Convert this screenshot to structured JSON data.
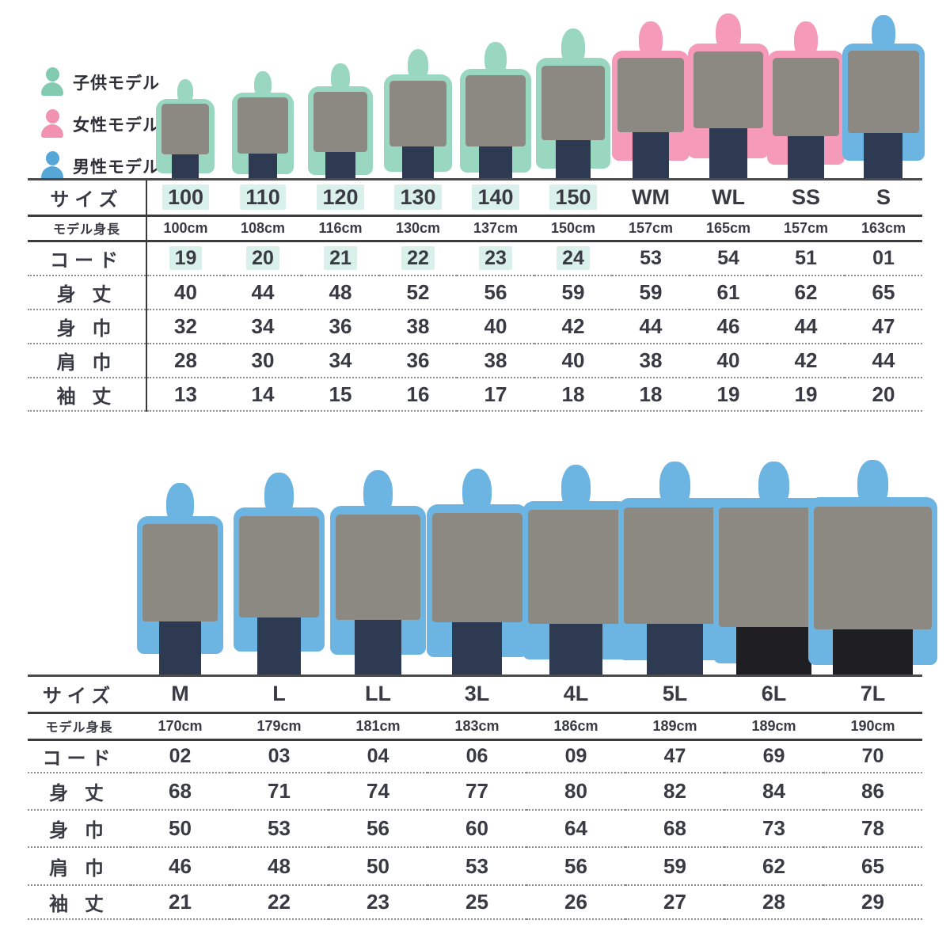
{
  "legend": {
    "items": [
      {
        "id": "kids",
        "label": "子供モデル",
        "color": "#82cbb1"
      },
      {
        "id": "women",
        "label": "女性モデル",
        "color": "#f193b0"
      },
      {
        "id": "men",
        "label": "男性モデル",
        "color": "#57a6d8"
      }
    ]
  },
  "row_labels": {
    "size": "サイズ",
    "model_height": "モデル身長",
    "code": "コード",
    "body_length": "身 丈",
    "body_width": "身 巾",
    "shoulder_width": "肩 巾",
    "sleeve_length": "袖 丈"
  },
  "palette": {
    "kids_text": "#3aa69e",
    "women_text": "#ec7ca6",
    "men_text": "#3691c6",
    "kids_highlight": "#d9f1ea",
    "number_text": "#3a3a44",
    "shirt": "#8c8882",
    "jeans": "#2d3a52",
    "shorts": "#1f1f23",
    "kids_model": "#9ad7c0",
    "women_model": "#f59ab9",
    "men_model": "#6cb4e2"
  },
  "size_chart_small": {
    "columns": [
      {
        "size": "100",
        "model_height": "100cm",
        "code": "19",
        "body_length": "40",
        "body_width": "32",
        "shoulder_width": "28",
        "sleeve_length": "13",
        "group": "kids",
        "model": "kids",
        "model_height_cm": 100,
        "legs": "jeans"
      },
      {
        "size": "110",
        "model_height": "108cm",
        "code": "20",
        "body_length": "44",
        "body_width": "34",
        "shoulder_width": "30",
        "sleeve_length": "14",
        "group": "kids",
        "model": "kids",
        "model_height_cm": 108,
        "legs": "jeans"
      },
      {
        "size": "120",
        "model_height": "116cm",
        "code": "21",
        "body_length": "48",
        "body_width": "36",
        "shoulder_width": "34",
        "sleeve_length": "15",
        "group": "kids",
        "model": "kids",
        "model_height_cm": 116,
        "legs": "jeans"
      },
      {
        "size": "130",
        "model_height": "130cm",
        "code": "22",
        "body_length": "52",
        "body_width": "38",
        "shoulder_width": "36",
        "sleeve_length": "16",
        "group": "kids",
        "model": "kids",
        "model_height_cm": 130,
        "legs": "jeans"
      },
      {
        "size": "140",
        "model_height": "137cm",
        "code": "23",
        "body_length": "56",
        "body_width": "40",
        "shoulder_width": "38",
        "sleeve_length": "17",
        "group": "kids",
        "model": "kids",
        "model_height_cm": 137,
        "legs": "jeans"
      },
      {
        "size": "150",
        "model_height": "150cm",
        "code": "24",
        "body_length": "59",
        "body_width": "42",
        "shoulder_width": "40",
        "sleeve_length": "18",
        "group": "kids",
        "model": "kids",
        "model_height_cm": 150,
        "legs": "jeans"
      },
      {
        "size": "WM",
        "model_height": "157cm",
        "code": "53",
        "body_length": "59",
        "body_width": "44",
        "shoulder_width": "38",
        "sleeve_length": "18",
        "group": "women",
        "model": "women",
        "model_height_cm": 157,
        "legs": "jeans"
      },
      {
        "size": "WL",
        "model_height": "165cm",
        "code": "54",
        "body_length": "61",
        "body_width": "46",
        "shoulder_width": "40",
        "sleeve_length": "19",
        "group": "women",
        "model": "women",
        "model_height_cm": 165,
        "legs": "jeans"
      },
      {
        "size": "SS",
        "model_height": "157cm",
        "code": "51",
        "body_length": "62",
        "body_width": "44",
        "shoulder_width": "42",
        "sleeve_length": "19",
        "group": "men",
        "model": "women",
        "model_height_cm": 157,
        "legs": "jeans"
      },
      {
        "size": "S",
        "model_height": "163cm",
        "code": "01",
        "body_length": "65",
        "body_width": "47",
        "shoulder_width": "44",
        "sleeve_length": "20",
        "group": "men",
        "model": "men",
        "model_height_cm": 163,
        "legs": "jeans"
      }
    ]
  },
  "size_chart_large": {
    "columns": [
      {
        "size": "M",
        "model_height": "170cm",
        "code": "02",
        "body_length": "68",
        "body_width": "50",
        "shoulder_width": "46",
        "sleeve_length": "21",
        "group": "men",
        "model": "men",
        "model_height_cm": 170,
        "legs": "jeans"
      },
      {
        "size": "L",
        "model_height": "179cm",
        "code": "03",
        "body_length": "71",
        "body_width": "53",
        "shoulder_width": "48",
        "sleeve_length": "22",
        "group": "men",
        "model": "men",
        "model_height_cm": 179,
        "legs": "jeans"
      },
      {
        "size": "LL",
        "model_height": "181cm",
        "code": "04",
        "body_length": "74",
        "body_width": "56",
        "shoulder_width": "50",
        "sleeve_length": "23",
        "group": "men",
        "model": "men",
        "model_height_cm": 181,
        "legs": "jeans"
      },
      {
        "size": "3L",
        "model_height": "183cm",
        "code": "06",
        "body_length": "77",
        "body_width": "60",
        "shoulder_width": "53",
        "sleeve_length": "25",
        "group": "men",
        "model": "men",
        "model_height_cm": 183,
        "legs": "jeans"
      },
      {
        "size": "4L",
        "model_height": "186cm",
        "code": "09",
        "body_length": "80",
        "body_width": "64",
        "shoulder_width": "56",
        "sleeve_length": "26",
        "group": "men",
        "model": "men",
        "model_height_cm": 186,
        "legs": "jeans"
      },
      {
        "size": "5L",
        "model_height": "189cm",
        "code": "47",
        "body_length": "82",
        "body_width": "68",
        "shoulder_width": "59",
        "sleeve_length": "27",
        "group": "men",
        "model": "men",
        "model_height_cm": 189,
        "legs": "jeans"
      },
      {
        "size": "6L",
        "model_height": "189cm",
        "code": "69",
        "body_length": "84",
        "body_width": "73",
        "shoulder_width": "62",
        "sleeve_length": "28",
        "group": "men",
        "model": "men",
        "model_height_cm": 189,
        "legs": "shorts"
      },
      {
        "size": "7L",
        "model_height": "190cm",
        "code": "70",
        "body_length": "86",
        "body_width": "78",
        "shoulder_width": "65",
        "sleeve_length": "29",
        "group": "men",
        "model": "men",
        "model_height_cm": 190,
        "legs": "shorts"
      }
    ]
  }
}
